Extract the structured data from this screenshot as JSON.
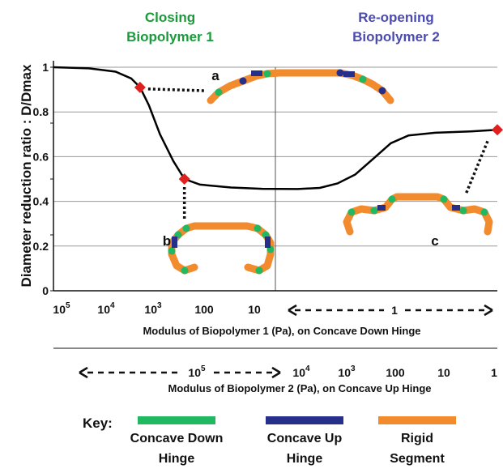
{
  "chart_data": {
    "type": "line",
    "headers": [
      {
        "line1": "Closing",
        "line2": "Biopolymer 1",
        "color": "#1a9a3a"
      },
      {
        "line1": "Re-opening",
        "line2": "Biopolymer 2",
        "color": "#4b4bb0"
      }
    ],
    "ylabel": "Diameter reduction ratio : D/Dmax",
    "ylim": [
      0,
      1
    ],
    "yticks": [
      "0",
      "0.2",
      "0.4",
      "0.6",
      "0.8",
      "1"
    ],
    "grid": true,
    "xaxis1": {
      "label": "Modulus of Biopolymer 1 (Pa), on Concave Down Hinge",
      "ticks": [
        {
          "base": "10",
          "exp": "5"
        },
        {
          "base": "10",
          "exp": "4"
        },
        {
          "base": "10",
          "exp": "3"
        },
        {
          "base": "100",
          "exp": ""
        },
        {
          "base": "10",
          "exp": ""
        }
      ],
      "range_label": "1"
    },
    "xaxis2": {
      "label": "Modulus of Biopolymer 2 (Pa), on Concave Up Hinge",
      "range_label": {
        "base": "10",
        "exp": "5"
      },
      "ticks": [
        {
          "base": "10",
          "exp": "4"
        },
        {
          "base": "10",
          "exp": "3"
        },
        {
          "base": "100",
          "exp": ""
        },
        {
          "base": "10",
          "exp": ""
        },
        {
          "base": "1",
          "exp": ""
        }
      ]
    },
    "series": [
      {
        "color": "#000000",
        "points": [
          [
            0.0,
            1.0
          ],
          [
            0.08,
            0.995
          ],
          [
            0.14,
            0.98
          ],
          [
            0.175,
            0.95
          ],
          [
            0.195,
            0.91
          ],
          [
            0.215,
            0.83
          ],
          [
            0.24,
            0.7
          ],
          [
            0.27,
            0.58
          ],
          [
            0.295,
            0.5
          ],
          [
            0.33,
            0.475
          ],
          [
            0.4,
            0.462
          ],
          [
            0.47,
            0.456
          ],
          [
            0.55,
            0.455
          ],
          [
            0.6,
            0.46
          ],
          [
            0.64,
            0.48
          ],
          [
            0.68,
            0.52
          ],
          [
            0.72,
            0.59
          ],
          [
            0.76,
            0.66
          ],
          [
            0.8,
            0.695
          ],
          [
            0.86,
            0.707
          ],
          [
            0.94,
            0.713
          ],
          [
            1.0,
            0.72
          ]
        ]
      }
    ],
    "markers": [
      {
        "x": 0.195,
        "y": 0.91,
        "label": "a"
      },
      {
        "x": 0.295,
        "y": 0.5,
        "label": "b"
      },
      {
        "x": 1.0,
        "y": 0.72,
        "label": "c"
      }
    ],
    "marker_color": "#e0201e",
    "colors": {
      "concave_down": "#20b860",
      "concave_up": "#26308a",
      "rigid": "#f28a2e"
    },
    "key": {
      "title": "Key:",
      "items": [
        {
          "line1": "Concave Down",
          "line2": "Hinge",
          "color": "#20b860"
        },
        {
          "line1": "Concave Up",
          "line2": "Hinge",
          "color": "#26308a"
        },
        {
          "line1": "Rigid",
          "line2": "Segment",
          "color": "#f28a2e"
        }
      ]
    }
  }
}
